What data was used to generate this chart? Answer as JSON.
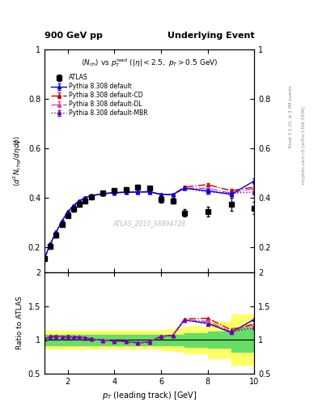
{
  "title_left": "900 GeV pp",
  "title_right": "Underlying Event",
  "right_label1": "Rivet 3.1.10, ≥ 3.3M events",
  "right_label2": "mcplots.cern.ch [arXiv:1306.3436]",
  "watermark": "ATLAS_2010_S8894728",
  "ylabel_main": "⟨d² N_{chg}/dηdφ⟩",
  "ylabel_ratio": "Ratio to ATLAS",
  "xlabel": "p_{T} (leading track) [GeV]",
  "xlim": [
    1,
    10
  ],
  "ylim_main": [
    0.1,
    1.0
  ],
  "ylim_ratio": [
    0.5,
    2.0
  ],
  "atlas_x": [
    1.0,
    1.25,
    1.5,
    1.75,
    2.0,
    2.25,
    2.5,
    2.75,
    3.0,
    3.5,
    4.0,
    4.5,
    5.0,
    5.5,
    6.0,
    6.5,
    7.0,
    8.0,
    9.0,
    10.0
  ],
  "atlas_y": [
    0.155,
    0.205,
    0.25,
    0.295,
    0.33,
    0.355,
    0.375,
    0.39,
    0.405,
    0.42,
    0.43,
    0.435,
    0.445,
    0.44,
    0.395,
    0.39,
    0.34,
    0.345,
    0.375,
    0.36
  ],
  "atlas_yerr": [
    0.008,
    0.008,
    0.008,
    0.008,
    0.008,
    0.008,
    0.008,
    0.008,
    0.008,
    0.008,
    0.008,
    0.008,
    0.008,
    0.008,
    0.012,
    0.012,
    0.015,
    0.02,
    0.025,
    0.025
  ],
  "pythia_x": [
    1.0,
    1.25,
    1.5,
    1.75,
    2.0,
    2.25,
    2.5,
    2.75,
    3.0,
    3.5,
    4.0,
    4.5,
    5.0,
    5.5,
    6.0,
    6.5,
    7.0,
    8.0,
    9.0,
    10.0
  ],
  "default_y": [
    0.157,
    0.215,
    0.263,
    0.308,
    0.345,
    0.37,
    0.39,
    0.402,
    0.41,
    0.418,
    0.422,
    0.424,
    0.425,
    0.426,
    0.415,
    0.415,
    0.44,
    0.43,
    0.415,
    0.47
  ],
  "default_yerr": [
    0.002,
    0.002,
    0.002,
    0.002,
    0.002,
    0.002,
    0.002,
    0.002,
    0.002,
    0.002,
    0.002,
    0.002,
    0.002,
    0.002,
    0.003,
    0.003,
    0.005,
    0.006,
    0.007,
    0.01
  ],
  "cd_y": [
    0.157,
    0.215,
    0.263,
    0.308,
    0.345,
    0.37,
    0.39,
    0.402,
    0.41,
    0.418,
    0.422,
    0.424,
    0.425,
    0.426,
    0.415,
    0.415,
    0.445,
    0.455,
    0.43,
    0.445
  ],
  "cd_yerr": [
    0.002,
    0.002,
    0.002,
    0.002,
    0.002,
    0.002,
    0.002,
    0.002,
    0.002,
    0.002,
    0.002,
    0.002,
    0.002,
    0.002,
    0.003,
    0.003,
    0.005,
    0.007,
    0.008,
    0.012
  ],
  "dl_y": [
    0.157,
    0.215,
    0.263,
    0.308,
    0.345,
    0.37,
    0.39,
    0.402,
    0.41,
    0.418,
    0.422,
    0.424,
    0.425,
    0.426,
    0.415,
    0.415,
    0.44,
    0.44,
    0.42,
    0.44
  ],
  "dl_yerr": [
    0.002,
    0.002,
    0.002,
    0.002,
    0.002,
    0.002,
    0.002,
    0.002,
    0.002,
    0.002,
    0.002,
    0.002,
    0.002,
    0.002,
    0.003,
    0.003,
    0.005,
    0.006,
    0.008,
    0.012
  ],
  "mbr_y": [
    0.157,
    0.215,
    0.263,
    0.308,
    0.345,
    0.37,
    0.39,
    0.402,
    0.41,
    0.418,
    0.422,
    0.424,
    0.425,
    0.426,
    0.415,
    0.415,
    0.44,
    0.425,
    0.42,
    0.425
  ],
  "mbr_yerr": [
    0.002,
    0.002,
    0.002,
    0.002,
    0.002,
    0.002,
    0.002,
    0.002,
    0.002,
    0.002,
    0.002,
    0.002,
    0.002,
    0.002,
    0.003,
    0.003,
    0.005,
    0.006,
    0.007,
    0.01
  ],
  "green_band_x": [
    1.0,
    1.5,
    2.0,
    2.5,
    3.0,
    3.5,
    4.0,
    4.5,
    5.0,
    5.5,
    6.0,
    6.5,
    7.0,
    8.0,
    9.0,
    10.01
  ],
  "green_band_lo": [
    0.92,
    0.92,
    0.92,
    0.92,
    0.92,
    0.92,
    0.92,
    0.92,
    0.92,
    0.92,
    0.92,
    0.92,
    0.9,
    0.88,
    0.82,
    0.75
  ],
  "green_band_hi": [
    1.08,
    1.08,
    1.08,
    1.08,
    1.08,
    1.08,
    1.08,
    1.08,
    1.08,
    1.08,
    1.08,
    1.08,
    1.1,
    1.12,
    1.18,
    1.25
  ],
  "yellow_band_lo": [
    0.87,
    0.87,
    0.87,
    0.87,
    0.87,
    0.87,
    0.87,
    0.87,
    0.87,
    0.87,
    0.85,
    0.83,
    0.8,
    0.73,
    0.63,
    0.55
  ],
  "yellow_band_hi": [
    1.13,
    1.13,
    1.13,
    1.13,
    1.13,
    1.13,
    1.13,
    1.13,
    1.13,
    1.13,
    1.15,
    1.17,
    1.2,
    1.27,
    1.37,
    1.45
  ],
  "color_default": "#0000ee",
  "color_cd": "#cc0000",
  "color_dl": "#dd44aa",
  "color_mbr": "#6600bb",
  "atlas_color": "#000000"
}
